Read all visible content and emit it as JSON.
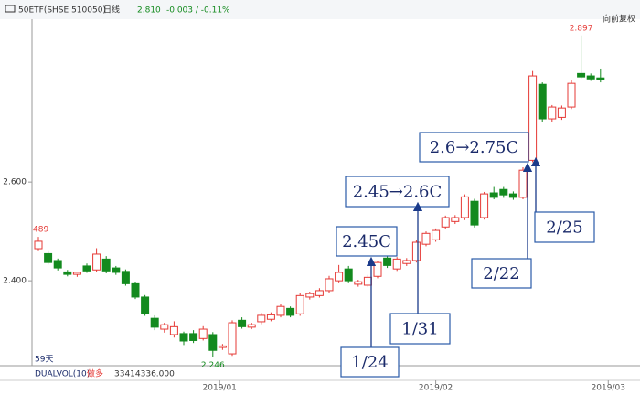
{
  "header": {
    "symbol": "50ETF(SHSE 510050)",
    "period": "日线",
    "price": "2.810",
    "change": "-0.003 / -0.11%",
    "adjust": "向前复权"
  },
  "chart_data": {
    "type": "candlestick",
    "open": [
      2.465,
      2.455,
      2.441,
      2.418,
      2.413,
      2.43,
      2.422,
      2.444,
      2.426,
      2.419,
      2.394,
      2.367,
      2.324,
      2.302,
      2.291,
      2.293,
      2.293,
      2.283,
      2.291,
      2.265,
      2.252,
      2.32,
      2.306,
      2.317,
      2.322,
      2.33,
      2.344,
      2.333,
      2.367,
      2.37,
      2.38,
      2.4,
      2.424,
      2.393,
      2.391,
      2.409,
      2.446,
      2.424,
      2.435,
      2.441,
      2.474,
      2.483,
      2.509,
      2.52,
      2.528,
      2.561,
      2.528,
      2.578,
      2.585,
      2.576,
      2.569,
      2.644,
      2.798,
      2.728,
      2.731,
      2.752,
      2.82,
      2.815,
      2.811
    ],
    "high": [
      2.489,
      2.46,
      2.445,
      2.422,
      2.418,
      2.435,
      2.466,
      2.45,
      2.43,
      2.423,
      2.398,
      2.371,
      2.33,
      2.315,
      2.318,
      2.297,
      2.3,
      2.308,
      2.296,
      2.272,
      2.32,
      2.326,
      2.315,
      2.335,
      2.336,
      2.352,
      2.348,
      2.375,
      2.378,
      2.385,
      2.41,
      2.432,
      2.43,
      2.402,
      2.412,
      2.441,
      2.452,
      2.448,
      2.446,
      2.482,
      2.5,
      2.506,
      2.532,
      2.533,
      2.575,
      2.566,
      2.58,
      2.59,
      2.59,
      2.581,
      2.63,
      2.825,
      2.802,
      2.756,
      2.755,
      2.806,
      2.897,
      2.82,
      2.83
    ],
    "low": [
      2.46,
      2.433,
      2.421,
      2.409,
      2.408,
      2.416,
      2.418,
      2.415,
      2.412,
      2.39,
      2.363,
      2.329,
      2.3,
      2.295,
      2.285,
      2.27,
      2.274,
      2.279,
      2.246,
      2.26,
      2.248,
      2.303,
      2.302,
      2.312,
      2.318,
      2.326,
      2.326,
      2.329,
      2.362,
      2.366,
      2.376,
      2.395,
      2.395,
      2.388,
      2.387,
      2.405,
      2.426,
      2.42,
      2.43,
      2.437,
      2.47,
      2.479,
      2.505,
      2.515,
      2.523,
      2.508,
      2.524,
      2.565,
      2.568,
      2.564,
      2.565,
      2.64,
      2.722,
      2.722,
      2.726,
      2.748,
      2.81,
      2.805,
      2.802
    ],
    "close": [
      2.48,
      2.437,
      2.426,
      2.413,
      2.417,
      2.42,
      2.454,
      2.42,
      2.417,
      2.394,
      2.367,
      2.333,
      2.306,
      2.311,
      2.307,
      2.278,
      2.279,
      2.302,
      2.259,
      2.268,
      2.315,
      2.307,
      2.311,
      2.33,
      2.331,
      2.348,
      2.33,
      2.37,
      2.374,
      2.38,
      2.404,
      2.417,
      2.4,
      2.398,
      2.407,
      2.437,
      2.431,
      2.444,
      2.441,
      2.478,
      2.496,
      2.502,
      2.528,
      2.528,
      2.57,
      2.513,
      2.576,
      2.569,
      2.574,
      2.569,
      2.624,
      2.815,
      2.728,
      2.752,
      2.75,
      2.8,
      2.813,
      2.809,
      2.807
    ],
    "up_color": "#e53935",
    "down_color": "#138a1e",
    "ylim": [
      2.228,
      2.904
    ],
    "yticks": [
      {
        "value": 2.4,
        "label": "2.400"
      },
      {
        "value": 2.6,
        "label": "2.600"
      }
    ],
    "xticks": [
      {
        "value": 18.7,
        "label": "2019/01"
      },
      {
        "value": 41,
        "label": "2019/02"
      },
      {
        "value": 58.8,
        "label": "2019/03"
      }
    ],
    "price_labels": [
      {
        "index": 0,
        "text": "489"
      },
      {
        "index": 18,
        "text": "2.246"
      },
      {
        "index": 56,
        "text": "2.897"
      }
    ],
    "annotations": [
      "2.45C",
      "1/24",
      "2.45→2.6C",
      "1/31",
      "2.6→2.75C",
      "2/22",
      "2/25"
    ],
    "days_label": "59天"
  },
  "footer": {
    "indicator": "DUALVOL(10)",
    "mode": "做多",
    "value": "33414336.000"
  }
}
